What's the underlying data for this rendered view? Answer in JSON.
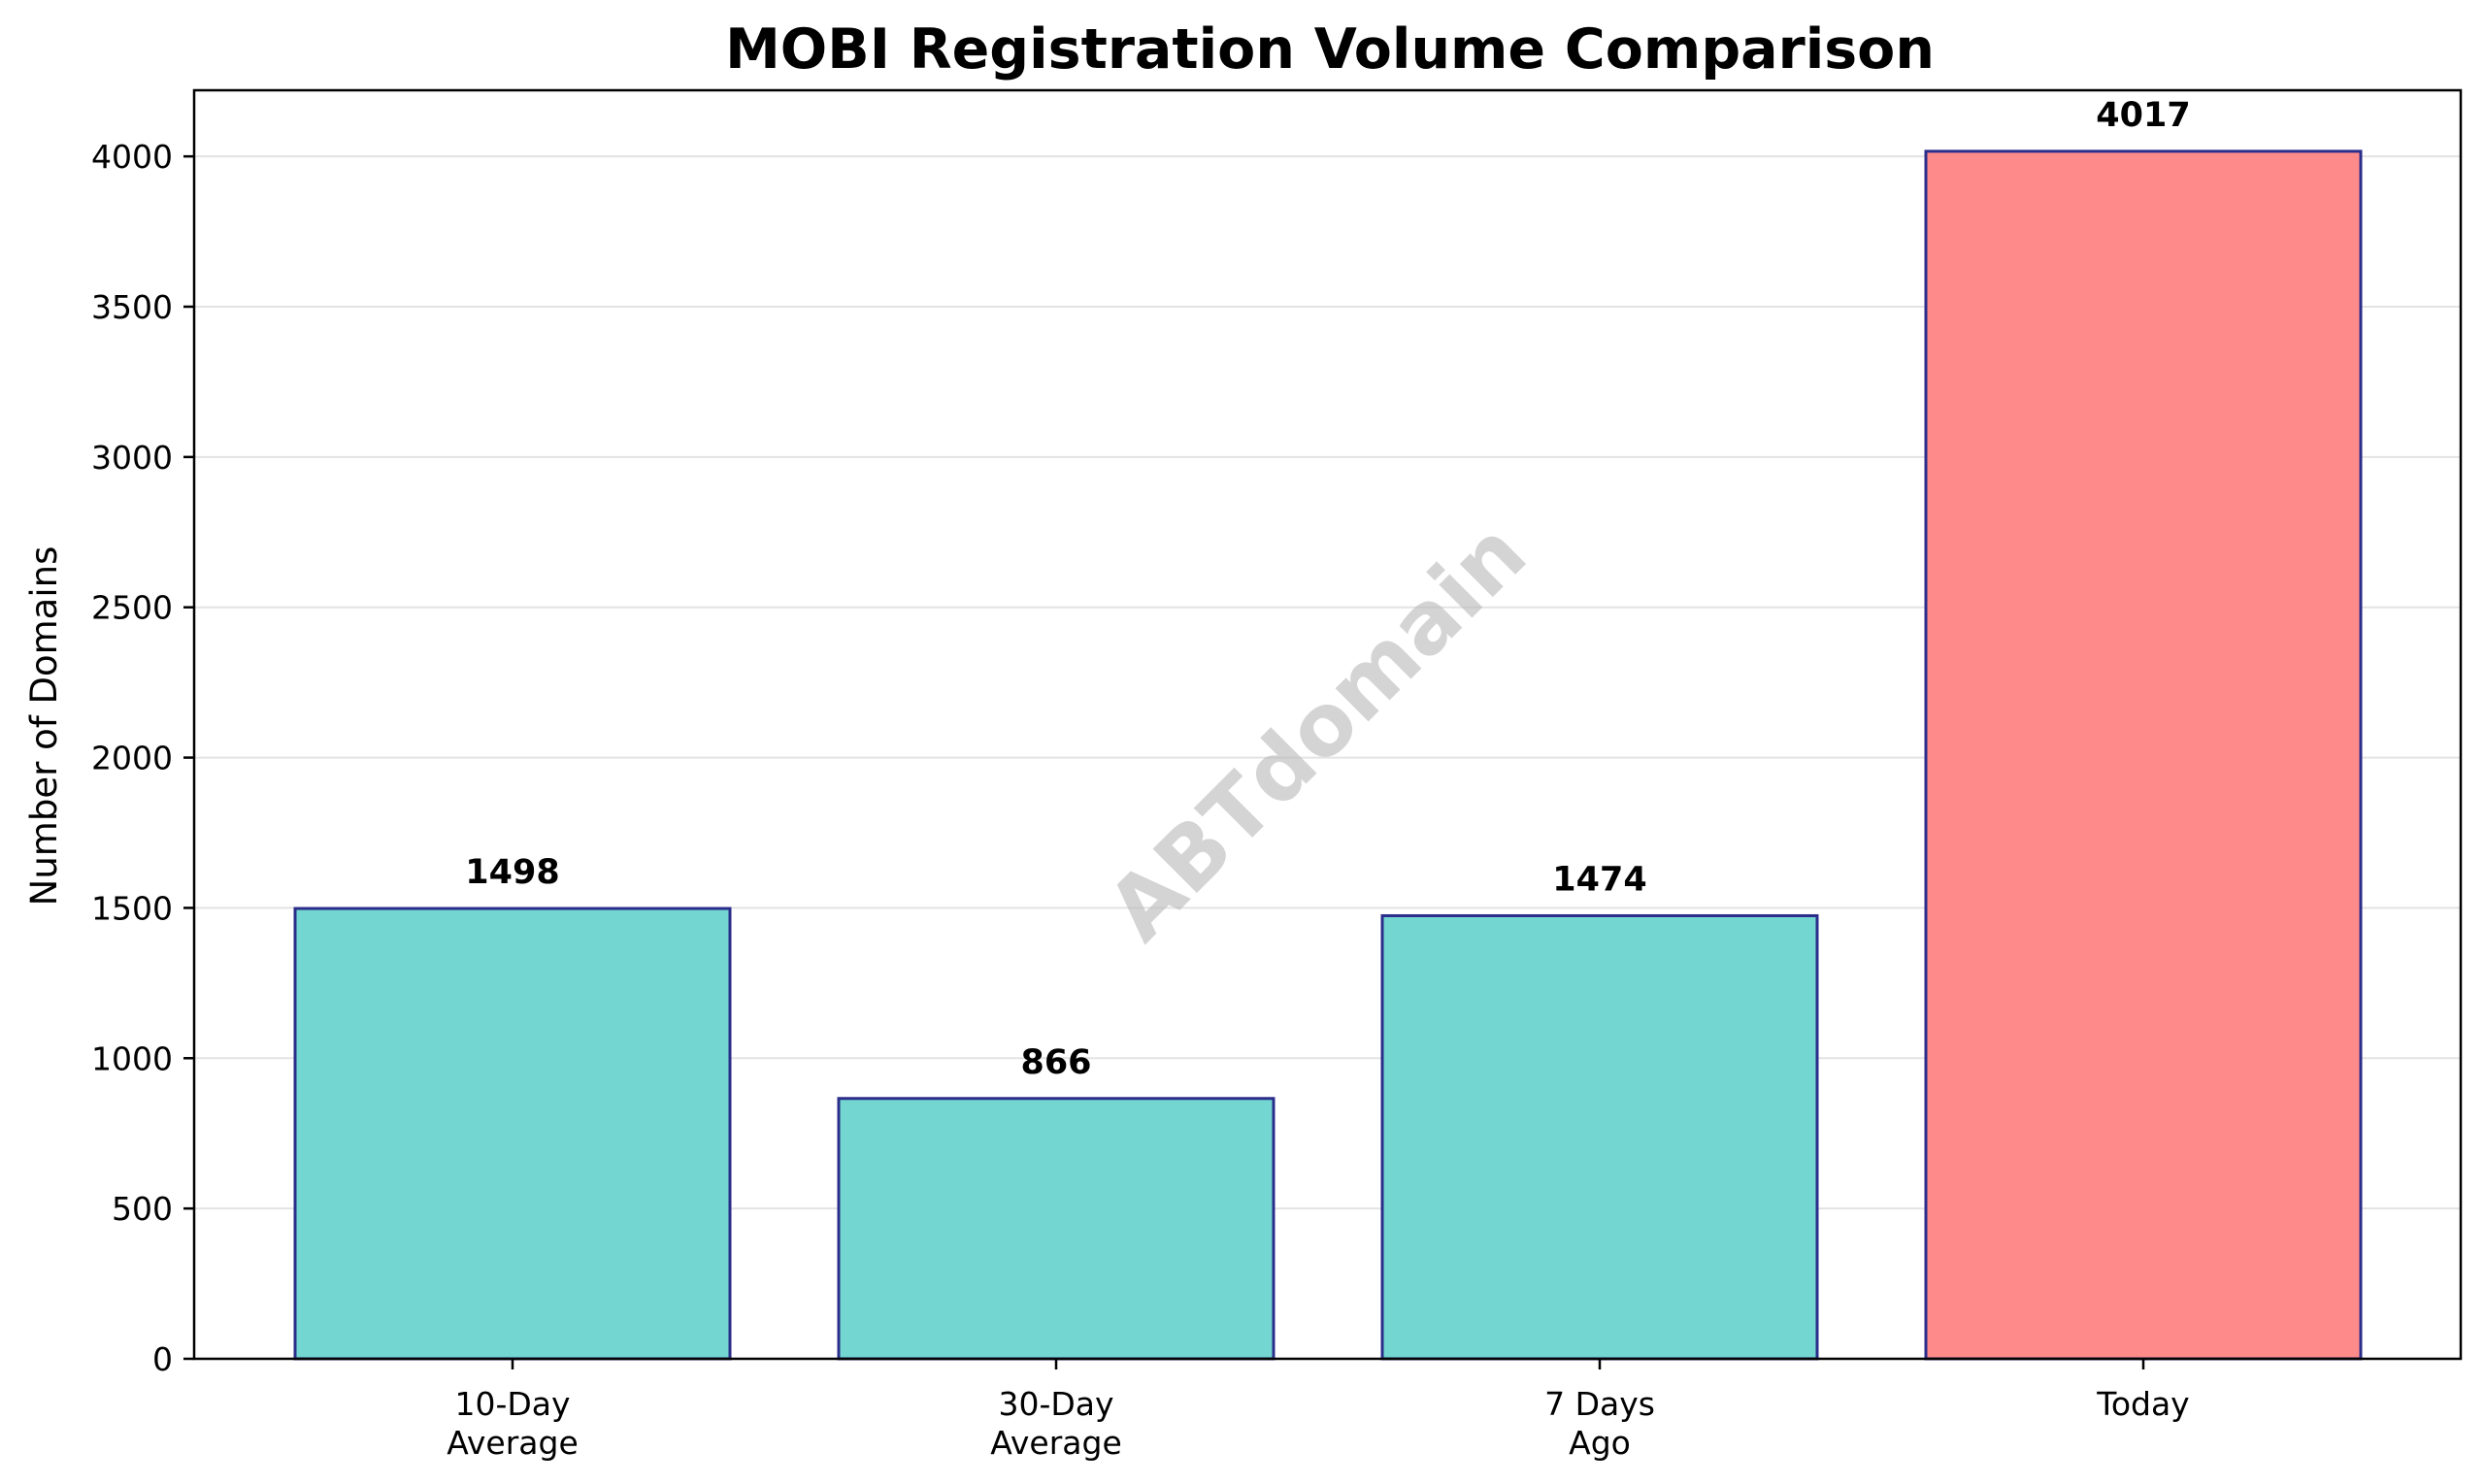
{
  "chart_data": {
    "type": "bar",
    "title": "MOBI Registration Volume Comparison",
    "xlabel": "",
    "ylabel": "Number of Domains",
    "categories": [
      [
        "10-Day",
        "Average"
      ],
      [
        "30-Day",
        "Average"
      ],
      [
        "7 Days",
        "Ago"
      ],
      [
        "Today"
      ]
    ],
    "values": [
      1498,
      866,
      1474,
      4017
    ],
    "value_labels": [
      "1498",
      "866",
      "1474",
      "4017"
    ],
    "bar_colors": [
      "#73d6d0",
      "#73d6d0",
      "#73d6d0",
      "#ff8a8a"
    ],
    "bar_edge_color": "#2b2d8a",
    "ylim": [
      0,
      4220
    ],
    "yticks": [
      0,
      500,
      1000,
      1500,
      2000,
      2500,
      3000,
      3500,
      4000
    ],
    "grid": "horizontal",
    "legend": "none",
    "watermark": "ABTdomain"
  }
}
